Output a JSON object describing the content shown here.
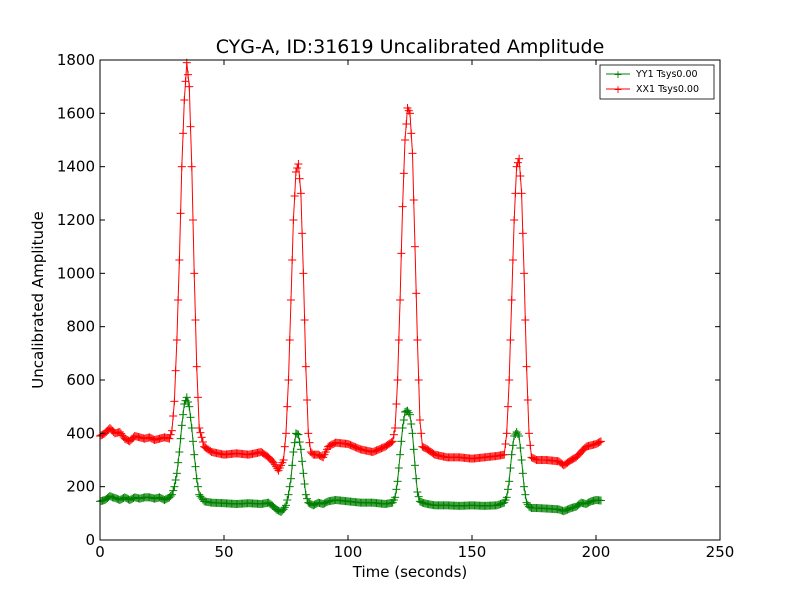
{
  "chart_data": {
    "type": "line",
    "title": "CYG-A, ID:31619 Uncalibrated Amplitude",
    "xlabel": "Time (seconds)",
    "ylabel": "Uncalibrated Amplitude",
    "xlim": [
      0,
      250
    ],
    "ylim": [
      0,
      1800
    ],
    "xticks": [
      0,
      50,
      100,
      150,
      200,
      250
    ],
    "yticks": [
      0,
      200,
      400,
      600,
      800,
      1000,
      1200,
      1400,
      1600,
      1800
    ],
    "grid": false,
    "legend_position": "top-right",
    "marker": "+",
    "series": [
      {
        "name": "YY1 Tsys0.00",
        "color": "#008000",
        "x": [
          0,
          2,
          4,
          5,
          6,
          8,
          10,
          12,
          14,
          16,
          18,
          20,
          22,
          24,
          26,
          28,
          29,
          30,
          31,
          32,
          33,
          34,
          35,
          36,
          37,
          38,
          39,
          40,
          42,
          45,
          50,
          55,
          60,
          65,
          68,
          70,
          71,
          72,
          73,
          74,
          75,
          76,
          77,
          78,
          79,
          80,
          81,
          82,
          83,
          84,
          85,
          86,
          88,
          90,
          92,
          95,
          100,
          105,
          110,
          115,
          118,
          119,
          120,
          121,
          122,
          123,
          124,
          125,
          126,
          127,
          128,
          129,
          130,
          132,
          135,
          140,
          145,
          150,
          155,
          160,
          163,
          164,
          165,
          166,
          167,
          168,
          169,
          170,
          171,
          172,
          173,
          174,
          176,
          180,
          185,
          187,
          190,
          192,
          194,
          196,
          198,
          200,
          202
        ],
        "values": [
          145,
          150,
          165,
          160,
          158,
          150,
          160,
          150,
          160,
          155,
          160,
          160,
          155,
          160,
          150,
          160,
          170,
          200,
          250,
          330,
          430,
          510,
          535,
          500,
          420,
          320,
          230,
          170,
          145,
          140,
          138,
          135,
          138,
          135,
          140,
          125,
          115,
          110,
          105,
          115,
          130,
          170,
          230,
          330,
          400,
          395,
          340,
          250,
          170,
          140,
          135,
          130,
          140,
          135,
          145,
          150,
          145,
          140,
          140,
          135,
          140,
          160,
          220,
          320,
          420,
          480,
          485,
          470,
          400,
          280,
          180,
          145,
          140,
          135,
          130,
          130,
          128,
          130,
          128,
          130,
          140,
          160,
          220,
          320,
          390,
          405,
          390,
          300,
          200,
          140,
          125,
          120,
          120,
          118,
          115,
          108,
          120,
          125,
          140,
          135,
          145,
          150,
          148
        ]
      },
      {
        "name": "XX1 Tsys0.00",
        "color": "#ff0000",
        "x": [
          0,
          2,
          4,
          5,
          6,
          8,
          10,
          12,
          14,
          16,
          18,
          20,
          22,
          24,
          26,
          28,
          29,
          30,
          31,
          32,
          33,
          34,
          35,
          36,
          37,
          38,
          39,
          40,
          42,
          45,
          50,
          55,
          60,
          65,
          68,
          70,
          72,
          74,
          75,
          76,
          77,
          78,
          79,
          80,
          81,
          82,
          83,
          84,
          85,
          86,
          88,
          90,
          92,
          95,
          100,
          105,
          110,
          115,
          118,
          119,
          120,
          121,
          122,
          123,
          124,
          125,
          126,
          127,
          128,
          129,
          130,
          132,
          135,
          140,
          145,
          150,
          155,
          160,
          163,
          164,
          165,
          166,
          167,
          168,
          169,
          170,
          171,
          172,
          173,
          174,
          176,
          180,
          185,
          187,
          190,
          192,
          194,
          196,
          198,
          200,
          202
        ],
        "values": [
          390,
          400,
          420,
          410,
          400,
          405,
          380,
          370,
          390,
          385,
          380,
          385,
          375,
          380,
          385,
          380,
          410,
          520,
          750,
          1050,
          1400,
          1650,
          1790,
          1700,
          1400,
          1000,
          650,
          420,
          350,
          330,
          320,
          325,
          320,
          330,
          310,
          290,
          260,
          300,
          400,
          600,
          900,
          1200,
          1380,
          1410,
          1300,
          1000,
          650,
          400,
          330,
          320,
          320,
          310,
          350,
          365,
          360,
          340,
          330,
          350,
          370,
          420,
          600,
          900,
          1250,
          1500,
          1620,
          1600,
          1450,
          1100,
          750,
          450,
          350,
          340,
          320,
          310,
          310,
          305,
          310,
          315,
          320,
          400,
          600,
          900,
          1200,
          1400,
          1430,
          1300,
          1000,
          650,
          400,
          310,
          300,
          300,
          295,
          280,
          300,
          310,
          330,
          350,
          355,
          360,
          370
        ]
      }
    ]
  }
}
